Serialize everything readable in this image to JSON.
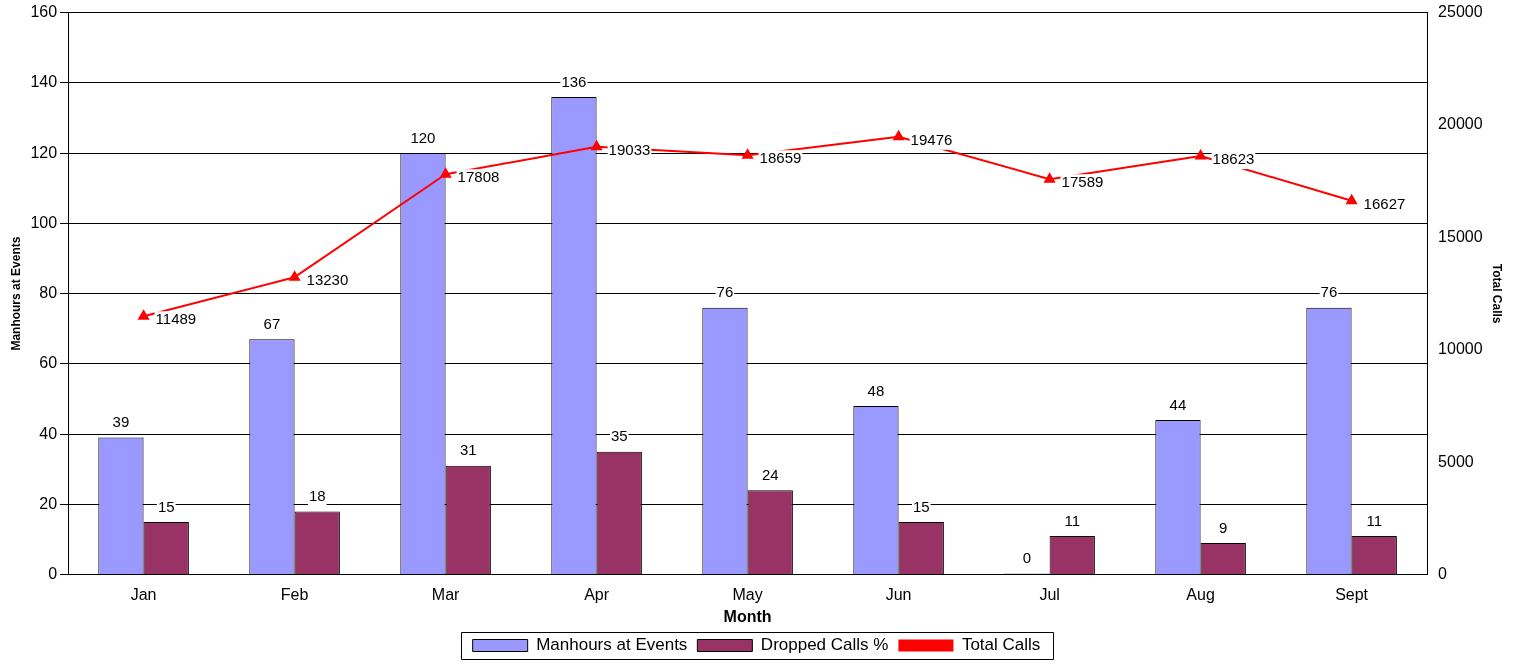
{
  "chart_data": {
    "type": "bar",
    "xlabel": "Month",
    "ylabel": "Manhours at Events",
    "y2label": "Total Calls",
    "categories": [
      "Jan",
      "Feb",
      "Mar",
      "Apr",
      "May",
      "Jun",
      "Jul",
      "Aug",
      "Sept"
    ],
    "series": [
      {
        "name": "Manhours at Events",
        "color": "#9999ff",
        "values": [
          39,
          67,
          120,
          136,
          76,
          48,
          0,
          44,
          76
        ]
      },
      {
        "name": "Dropped Calls %",
        "color": "#993366",
        "values": [
          15,
          18,
          31,
          35,
          24,
          15,
          11,
          9,
          11
        ]
      },
      {
        "name": "Total Calls",
        "type": "line",
        "axis": "y2",
        "color": "#ff0000",
        "marker": "triangle",
        "values": [
          11489,
          13230,
          17808,
          19033,
          18659,
          19476,
          17589,
          18623,
          16627
        ]
      }
    ],
    "ylim": [
      0,
      160
    ],
    "yticks": [
      0,
      20,
      40,
      60,
      80,
      100,
      120,
      140,
      160
    ],
    "y2lim": [
      0,
      25000
    ],
    "y2ticks": [
      0,
      5000,
      10000,
      15000,
      20000,
      25000
    ],
    "grid": "y",
    "legend": "bottom",
    "data_labels": true
  }
}
